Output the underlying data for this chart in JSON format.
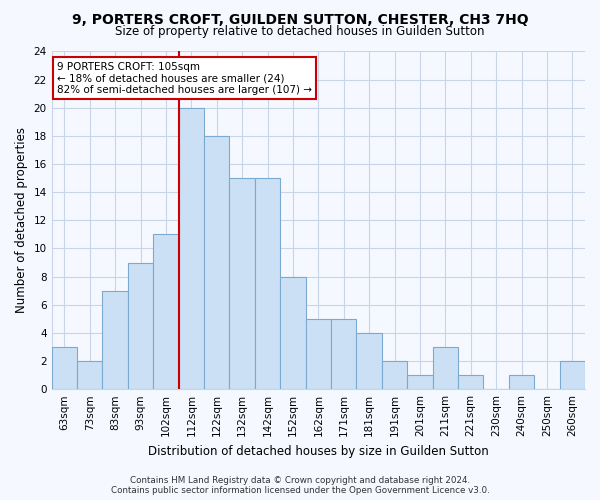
{
  "title": "9, PORTERS CROFT, GUILDEN SUTTON, CHESTER, CH3 7HQ",
  "subtitle": "Size of property relative to detached houses in Guilden Sutton",
  "xlabel": "Distribution of detached houses by size in Guilden Sutton",
  "ylabel": "Number of detached properties",
  "bin_labels": [
    "63sqm",
    "73sqm",
    "83sqm",
    "93sqm",
    "102sqm",
    "112sqm",
    "122sqm",
    "132sqm",
    "142sqm",
    "152sqm",
    "162sqm",
    "171sqm",
    "181sqm",
    "191sqm",
    "201sqm",
    "211sqm",
    "221sqm",
    "230sqm",
    "240sqm",
    "250sqm",
    "260sqm"
  ],
  "bin_counts": [
    3,
    2,
    7,
    9,
    11,
    20,
    18,
    15,
    15,
    8,
    5,
    5,
    4,
    2,
    1,
    3,
    1,
    0,
    1,
    0,
    2
  ],
  "bar_color": "#cce0f5",
  "bar_edge_color": "#7aaad0",
  "vline_x_index": 4.5,
  "vline_color": "#cc0000",
  "annotation_text": "9 PORTERS CROFT: 105sqm\n← 18% of detached houses are smaller (24)\n82% of semi-detached houses are larger (107) →",
  "annotation_box_color": "#ffffff",
  "annotation_box_edge": "#cc0000",
  "ylim": [
    0,
    24
  ],
  "yticks": [
    0,
    2,
    4,
    6,
    8,
    10,
    12,
    14,
    16,
    18,
    20,
    22,
    24
  ],
  "footer": "Contains HM Land Registry data © Crown copyright and database right 2024.\nContains public sector information licensed under the Open Government Licence v3.0.",
  "bg_color": "#f5f8ff",
  "grid_color": "#c8d4e8",
  "title_fontsize": 10,
  "subtitle_fontsize": 8.5,
  "axis_label_fontsize": 8.5,
  "tick_fontsize": 7.5
}
